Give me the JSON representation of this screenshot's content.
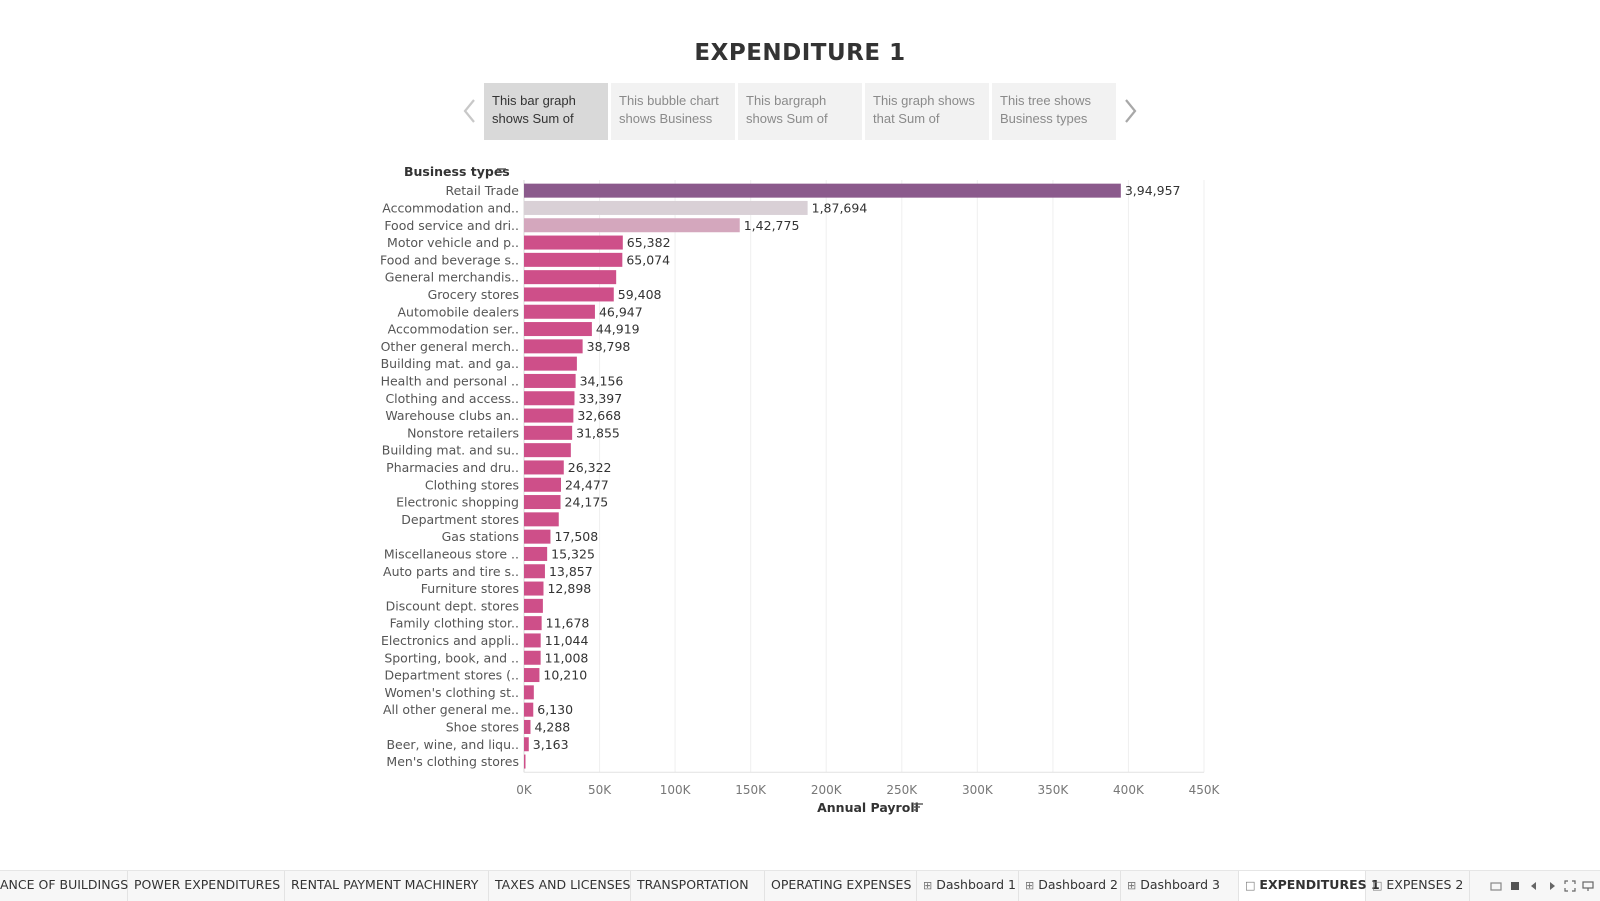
{
  "story_title": "EXPENDITURE 1",
  "story_points": [
    {
      "line1": "This bar graph",
      "line2": "shows Sum of"
    },
    {
      "line1": "This bubble chart",
      "line2": "shows Business"
    },
    {
      "line1": "This bargraph",
      "line2": "shows Sum of"
    },
    {
      "line1": "This graph shows",
      "line2": "that Sum of"
    },
    {
      "line1": "This tree shows",
      "line2": "Business types"
    }
  ],
  "chart_data": {
    "type": "bar",
    "orientation": "horizontal",
    "ylabel": "Business types",
    "xlabel": "Annual Payroll",
    "xlim": [
      0,
      450000
    ],
    "x_ticks": [
      "0K",
      "50K",
      "100K",
      "150K",
      "200K",
      "250K",
      "300K",
      "350K",
      "400K",
      "450K"
    ],
    "grid": true,
    "categories": [
      "Retail Trade",
      "Accommodation and..",
      "Food service and dri..",
      "Motor vehicle and p..",
      "Food and beverage s..",
      "General merchandis..",
      "Grocery stores",
      "Automobile dealers",
      "Accommodation ser..",
      "Other general merch..",
      "Building mat. and ga..",
      "Health and personal ..",
      "Clothing and access..",
      "Warehouse clubs an..",
      "Nonstore retailers",
      "Building mat. and su..",
      "Pharmacies and dru..",
      "Clothing stores",
      "Electronic shopping",
      "Department stores",
      "Gas stations",
      "Miscellaneous store ..",
      "Auto parts and tire s..",
      "Furniture stores",
      "Discount dept. stores",
      "Family clothing stor..",
      "Electronics and appli..",
      "Sporting, book, and ..",
      "Department stores (..",
      "Women's clothing st..",
      "All other general me..",
      "Shoe stores",
      "Beer, wine, and liqu..",
      "Men's clothing stores"
    ],
    "values": [
      394957,
      187694,
      142775,
      65382,
      65074,
      61000,
      59408,
      46947,
      44919,
      38798,
      35000,
      34156,
      33397,
      32668,
      31855,
      31000,
      26322,
      24477,
      24175,
      23000,
      17508,
      15325,
      13857,
      12898,
      12500,
      11678,
      11044,
      11008,
      10210,
      6500,
      6130,
      4288,
      3163,
      900
    ],
    "data_labels": [
      "3,94,957",
      "1,87,694",
      "1,42,775",
      "65,382",
      "65,074",
      "",
      "59,408",
      "46,947",
      "44,919",
      "38,798",
      "",
      "34,156",
      "33,397",
      "32,668",
      "31,855",
      "",
      "26,322",
      "24,477",
      "24,175",
      "",
      "17,508",
      "15,325",
      "13,857",
      "12,898",
      "",
      "11,678",
      "11,044",
      "11,008",
      "10,210",
      "",
      "6,130",
      "4,288",
      "3,163",
      ""
    ],
    "colors": {
      "max": "#8b5a8c",
      "second": "#d9d0d6",
      "third": "#d4a7bd",
      "rest": "#ce4f89"
    }
  },
  "tabs": [
    {
      "label": "ANCE OF BUILDINGS",
      "icon": "",
      "active": false
    },
    {
      "label": "POWER EXPENDITURES",
      "icon": "",
      "active": false
    },
    {
      "label": "RENTAL PAYMENT MACHINERY",
      "icon": "",
      "active": false
    },
    {
      "label": "TAXES AND LICENSES",
      "icon": "",
      "active": false
    },
    {
      "label": "TRANSPORTATION",
      "icon": "",
      "active": false
    },
    {
      "label": "OPERATING EXPENSES",
      "icon": "",
      "active": false
    },
    {
      "label": "Dashboard 1",
      "icon": "dashboard-icon",
      "active": false
    },
    {
      "label": "Dashboard 2",
      "icon": "dashboard-icon",
      "active": false
    },
    {
      "label": "Dashboard 3",
      "icon": "dashboard-icon",
      "active": false
    },
    {
      "label": "EXPENDITURES 1",
      "icon": "story-icon",
      "active": true
    },
    {
      "label": "EXPENSES 2",
      "icon": "story-icon",
      "active": false
    }
  ]
}
